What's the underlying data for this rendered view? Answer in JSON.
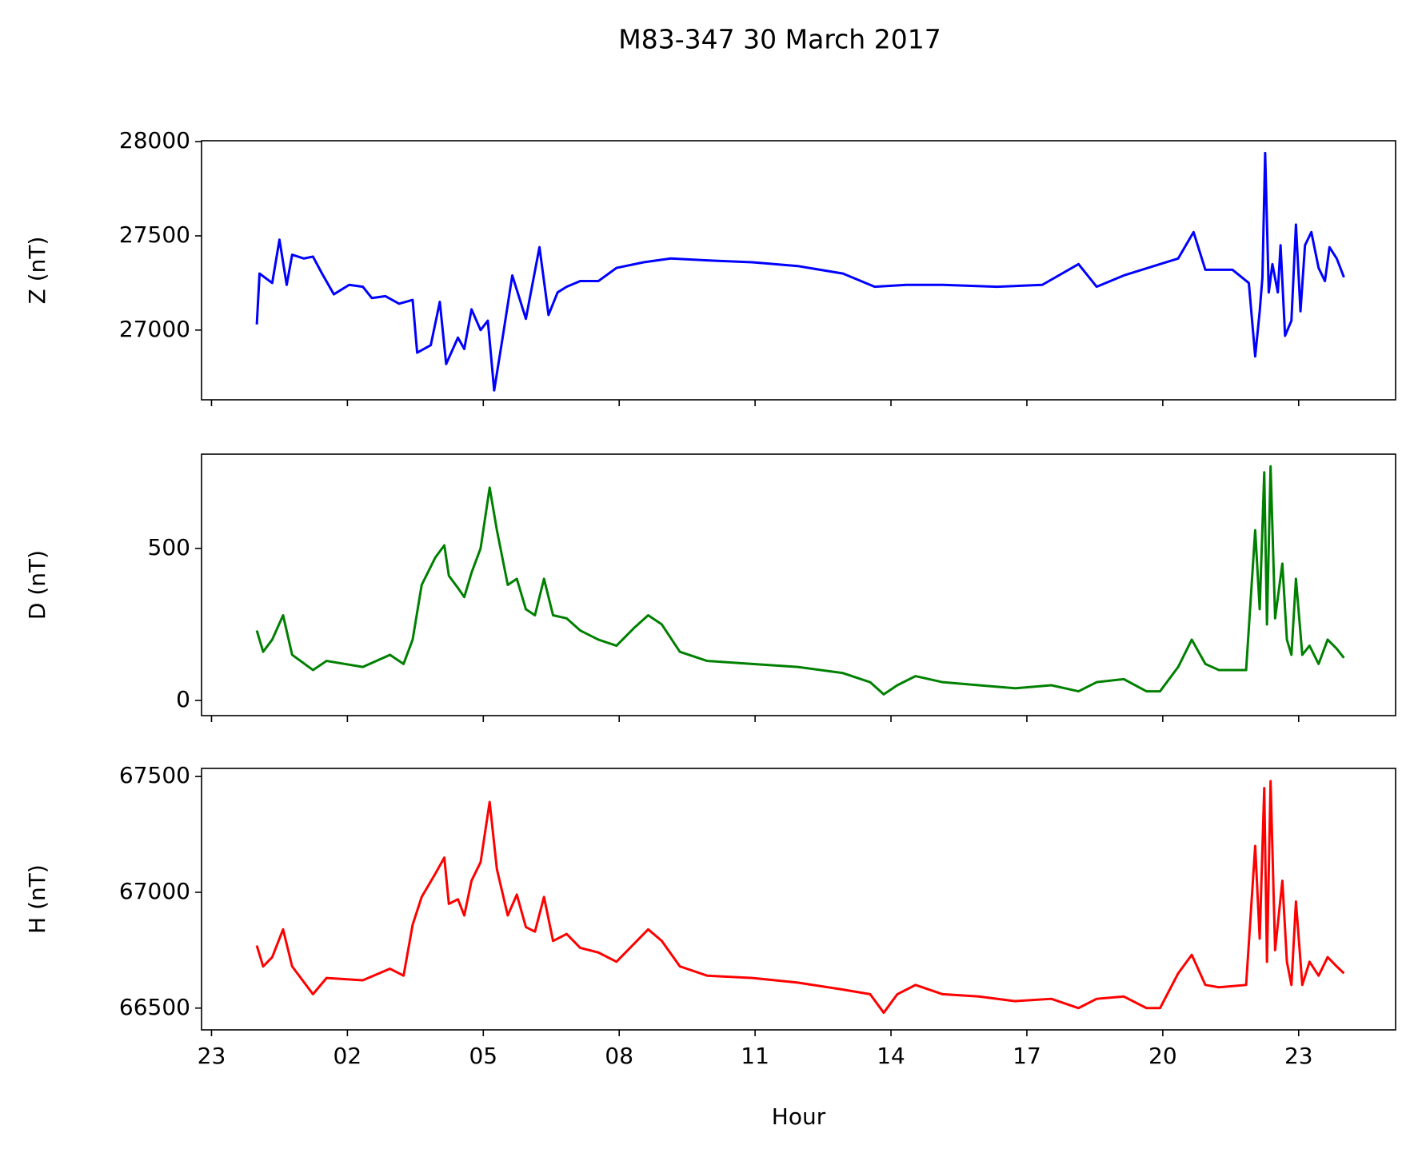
{
  "title": "M83-347 30 March 2017",
  "chart_data": [
    {
      "type": "line",
      "ylabel": "Z (nT)",
      "color": "#0000ff",
      "x": [
        0,
        0.06,
        0.34,
        0.5,
        0.66,
        0.78,
        1.04,
        1.24,
        1.44,
        1.7,
        2.04,
        2.34,
        2.54,
        2.84,
        3.14,
        3.44,
        3.54,
        3.84,
        4.04,
        4.18,
        4.44,
        4.58,
        4.74,
        4.94,
        5.1,
        5.24,
        5.44,
        5.64,
        5.94,
        6.24,
        6.44,
        6.64,
        6.84,
        7.14,
        7.54,
        7.94,
        8.54,
        9.14,
        9.94,
        10.94,
        11.94,
        12.94,
        13.64,
        14.34,
        15.14,
        16.34,
        17.34,
        18.14,
        18.54,
        19.14,
        19.94,
        20.34,
        20.68,
        20.94,
        21.54,
        21.9,
        22.04,
        22.14,
        22.2,
        22.26,
        22.34,
        22.42,
        22.54,
        22.6,
        22.7,
        22.84,
        22.94,
        23.04,
        23.14,
        23.28,
        23.44,
        23.58,
        23.68,
        23.84,
        24
      ],
      "values": [
        27030,
        27300,
        27250,
        27480,
        27240,
        27400,
        27380,
        27390,
        27300,
        27190,
        27240,
        27230,
        27170,
        27180,
        27140,
        27160,
        26880,
        26920,
        27150,
        26820,
        26960,
        26900,
        27110,
        27000,
        27050,
        26680,
        26980,
        27290,
        27060,
        27440,
        27080,
        27200,
        27230,
        27260,
        27260,
        27330,
        27360,
        27380,
        27370,
        27360,
        27340,
        27300,
        27230,
        27240,
        27240,
        27230,
        27240,
        27350,
        27230,
        27290,
        27350,
        27380,
        27520,
        27320,
        27320,
        27250,
        26860,
        27100,
        27280,
        27940,
        27200,
        27350,
        27200,
        27450,
        26970,
        27050,
        27560,
        27100,
        27450,
        27520,
        27330,
        27260,
        27440,
        27380,
        27280
      ],
      "xlim": [
        -1.22,
        25.14
      ],
      "ylim": [
        26630,
        28005
      ],
      "yticks": [
        27000,
        27500,
        28000
      ]
    },
    {
      "type": "line",
      "ylabel": "D (nT)",
      "color": "#008000",
      "x": [
        0,
        0.14,
        0.34,
        0.58,
        0.78,
        1.24,
        1.54,
        2.34,
        2.94,
        3.24,
        3.44,
        3.64,
        3.94,
        4.14,
        4.24,
        4.44,
        4.58,
        4.74,
        4.94,
        5.14,
        5.3,
        5.54,
        5.74,
        5.94,
        6.14,
        6.34,
        6.54,
        6.84,
        7.14,
        7.54,
        7.94,
        8.34,
        8.64,
        8.94,
        9.34,
        9.94,
        10.94,
        11.94,
        12.94,
        13.54,
        13.84,
        14.14,
        14.54,
        15.14,
        15.94,
        16.74,
        17.54,
        18.14,
        18.54,
        19.14,
        19.64,
        19.94,
        20.34,
        20.64,
        20.94,
        21.24,
        21.84,
        21.94,
        22.04,
        22.14,
        22.24,
        22.3,
        22.38,
        22.48,
        22.64,
        22.74,
        22.84,
        22.94,
        23.08,
        23.24,
        23.44,
        23.64,
        23.84,
        24
      ],
      "values": [
        230,
        160,
        200,
        280,
        150,
        100,
        130,
        110,
        150,
        120,
        200,
        380,
        470,
        510,
        410,
        370,
        340,
        420,
        500,
        700,
        560,
        380,
        400,
        300,
        280,
        400,
        280,
        270,
        230,
        200,
        180,
        240,
        280,
        250,
        160,
        130,
        120,
        110,
        90,
        60,
        20,
        50,
        80,
        60,
        50,
        40,
        50,
        30,
        60,
        70,
        30,
        30,
        110,
        200,
        120,
        100,
        100,
        330,
        560,
        300,
        750,
        250,
        770,
        270,
        450,
        200,
        150,
        400,
        150,
        180,
        120,
        200,
        170,
        140
      ],
      "xlim": [
        -1.22,
        25.14
      ],
      "ylim": [
        -50,
        810
      ],
      "yticks": [
        0,
        500
      ]
    },
    {
      "type": "line",
      "ylabel": "H (nT)",
      "xlabel": "Hour",
      "color": "#ff0000",
      "x": [
        0,
        0.14,
        0.34,
        0.58,
        0.78,
        1.24,
        1.54,
        2.34,
        2.94,
        3.24,
        3.44,
        3.64,
        3.94,
        4.14,
        4.24,
        4.44,
        4.58,
        4.74,
        4.94,
        5.14,
        5.3,
        5.54,
        5.74,
        5.94,
        6.14,
        6.34,
        6.54,
        6.84,
        7.14,
        7.54,
        7.94,
        8.34,
        8.64,
        8.94,
        9.34,
        9.94,
        10.94,
        11.94,
        12.94,
        13.54,
        13.84,
        14.14,
        14.54,
        15.14,
        15.94,
        16.74,
        17.54,
        18.14,
        18.54,
        19.14,
        19.64,
        19.94,
        20.34,
        20.64,
        20.94,
        21.24,
        21.84,
        21.94,
        22.04,
        22.14,
        22.24,
        22.3,
        22.38,
        22.48,
        22.64,
        22.74,
        22.84,
        22.94,
        23.08,
        23.24,
        23.44,
        23.64,
        23.84,
        24
      ],
      "values": [
        66770,
        66680,
        66720,
        66840,
        66680,
        66560,
        66630,
        66620,
        66670,
        66640,
        66860,
        66980,
        67080,
        67150,
        66950,
        66970,
        66900,
        67050,
        67130,
        67390,
        67100,
        66900,
        66990,
        66850,
        66830,
        66980,
        66790,
        66820,
        66760,
        66740,
        66700,
        66780,
        66840,
        66790,
        66680,
        66640,
        66630,
        66610,
        66580,
        66560,
        66480,
        66560,
        66600,
        66560,
        66550,
        66530,
        66540,
        66500,
        66540,
        66550,
        66500,
        66500,
        66650,
        66730,
        66600,
        66590,
        66600,
        66900,
        67200,
        66800,
        67450,
        66700,
        67480,
        66750,
        67050,
        66700,
        66600,
        66960,
        66600,
        66700,
        66640,
        66720,
        66680,
        66650
      ],
      "xlim": [
        -1.22,
        25.14
      ],
      "ylim": [
        66406,
        67535
      ],
      "yticks": [
        66500,
        67000,
        67500
      ],
      "xticks": [
        {
          "value": -1,
          "label": "23"
        },
        {
          "value": 2,
          "label": "02"
        },
        {
          "value": 5,
          "label": "05"
        },
        {
          "value": 8,
          "label": "08"
        },
        11,
        14,
        17,
        20,
        23
      ]
    }
  ]
}
